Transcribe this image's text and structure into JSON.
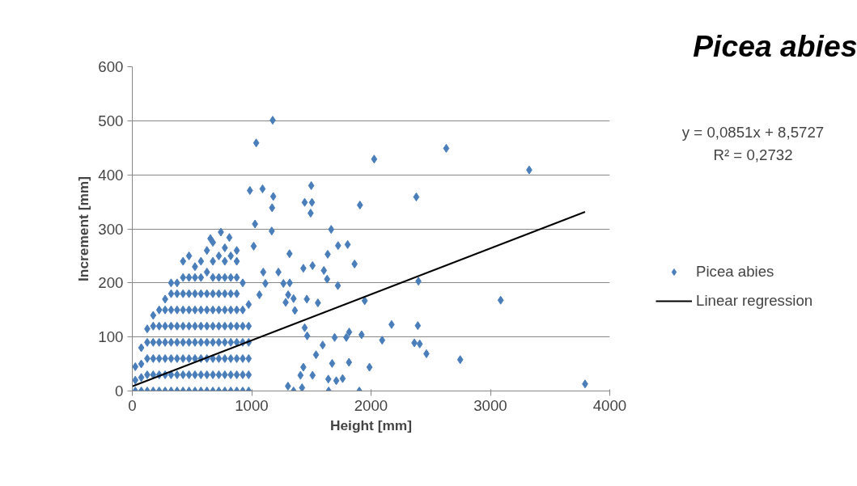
{
  "chart_data": {
    "type": "scatter",
    "title": "Picea abies",
    "xlabel": "Height [mm]",
    "ylabel": "Increment [mm]",
    "annotations": [
      "y = 0,0851x + 8,5727",
      "R² = 0,2732"
    ],
    "xlim": [
      0,
      4000
    ],
    "xticks": [
      0,
      1000,
      2000,
      3000,
      4000
    ],
    "ylim": [
      0,
      600
    ],
    "yticks": [
      0,
      100,
      200,
      300,
      400,
      500,
      600
    ],
    "grid": "y",
    "legend": "right",
    "series": [
      {
        "name": "Picea abies",
        "color": "#4a7ebb",
        "marker": "diamond",
        "x": [
          25,
          25,
          25,
          75,
          75,
          75,
          75,
          125,
          125,
          125,
          125,
          125,
          175,
          175,
          175,
          175,
          175,
          175,
          225,
          225,
          225,
          225,
          225,
          225,
          275,
          275,
          275,
          275,
          275,
          275,
          275,
          325,
          325,
          325,
          325,
          325,
          325,
          325,
          325,
          375,
          375,
          375,
          375,
          375,
          375,
          375,
          375,
          425,
          425,
          425,
          425,
          425,
          425,
          425,
          425,
          425,
          475,
          475,
          475,
          475,
          475,
          475,
          475,
          475,
          475,
          525,
          525,
          525,
          525,
          525,
          525,
          525,
          525,
          525,
          575,
          575,
          575,
          575,
          575,
          575,
          575,
          575,
          575,
          625,
          625,
          625,
          625,
          625,
          625,
          625,
          625,
          625,
          675,
          675,
          675,
          675,
          675,
          675,
          675,
          675,
          675,
          675,
          725,
          725,
          725,
          725,
          725,
          725,
          725,
          725,
          725,
          775,
          775,
          775,
          775,
          775,
          775,
          775,
          775,
          775,
          775,
          825,
          825,
          825,
          825,
          825,
          825,
          825,
          825,
          825,
          875,
          875,
          875,
          875,
          875,
          875,
          875,
          875,
          875,
          875,
          925,
          925,
          925,
          925,
          925,
          925,
          925,
          975,
          975,
          975,
          975,
          975,
          975,
          1176,
          1038,
          2630,
          2026,
          3325,
          985,
          1091,
          1499,
          1181,
          1171,
          1444,
          1505,
          1494,
          1907,
          2379,
          1028,
          1168,
          1666,
          742,
          654,
          813,
          1017,
          1724,
          1804,
          1317,
          1637,
          1862,
          1433,
          1510,
          1605,
          1632,
          1722,
          2397,
          1224,
          1319,
          1266,
          3086,
          1947,
          2172,
          2392,
          2093,
          2363,
          2408,
          2464,
          2747,
          3793,
          1987,
          1902,
          1674,
          1595,
          1817,
          1921,
          1695,
          1793,
          1555,
          1462,
          1362,
          1306,
          1351,
          1285,
          1097,
          1115,
          1065,
          1444,
          1465,
          1539,
          1510,
          1645,
          1422,
          1351,
          1304,
          1762,
          1709,
          1642,
          1815,
          1409,
          1433
        ],
        "values": [
          0,
          20,
          45,
          0,
          25,
          50,
          80,
          0,
          30,
          60,
          90,
          115,
          0,
          30,
          60,
          90,
          120,
          140,
          0,
          30,
          60,
          90,
          120,
          150,
          0,
          30,
          60,
          90,
          120,
          150,
          170,
          0,
          30,
          60,
          90,
          120,
          150,
          180,
          200,
          0,
          30,
          60,
          90,
          120,
          150,
          180,
          200,
          0,
          30,
          60,
          90,
          120,
          150,
          180,
          210,
          240,
          0,
          30,
          60,
          90,
          120,
          150,
          180,
          210,
          250,
          0,
          30,
          60,
          90,
          120,
          150,
          180,
          210,
          230,
          0,
          30,
          60,
          90,
          120,
          150,
          180,
          210,
          240,
          0,
          30,
          60,
          90,
          120,
          150,
          180,
          220,
          260,
          0,
          30,
          60,
          90,
          120,
          150,
          180,
          210,
          240,
          275,
          0,
          30,
          60,
          90,
          120,
          150,
          180,
          210,
          250,
          0,
          30,
          60,
          90,
          120,
          150,
          180,
          210,
          240,
          265,
          0,
          30,
          60,
          90,
          120,
          150,
          180,
          210,
          250,
          0,
          30,
          60,
          90,
          120,
          150,
          180,
          210,
          240,
          260,
          0,
          30,
          60,
          90,
          120,
          150,
          200,
          0,
          30,
          60,
          90,
          120,
          160,
          501,
          459,
          449,
          429,
          409,
          371,
          374,
          380,
          360,
          339,
          349,
          349,
          329,
          344,
          359,
          309,
          296,
          299,
          294,
          282,
          284,
          268,
          269,
          271,
          254,
          253,
          235,
          227,
          232,
          223,
          207,
          195,
          203,
          220,
          200,
          199,
          168,
          167,
          123,
          121,
          94,
          89,
          87,
          69,
          58,
          13,
          44,
          0,
          51,
          85,
          109,
          104,
          99,
          99,
          163,
          170,
          149,
          178,
          171,
          164,
          220,
          199,
          178,
          117,
          102,
          67,
          29,
          0,
          6,
          0,
          9,
          23,
          19,
          22,
          53,
          29,
          44
        ]
      },
      {
        "name": "Linear regression",
        "color": "#000000",
        "type": "line",
        "marker": "none",
        "x": [
          0,
          3793
        ],
        "values": [
          8.6,
          331.4
        ]
      }
    ]
  }
}
